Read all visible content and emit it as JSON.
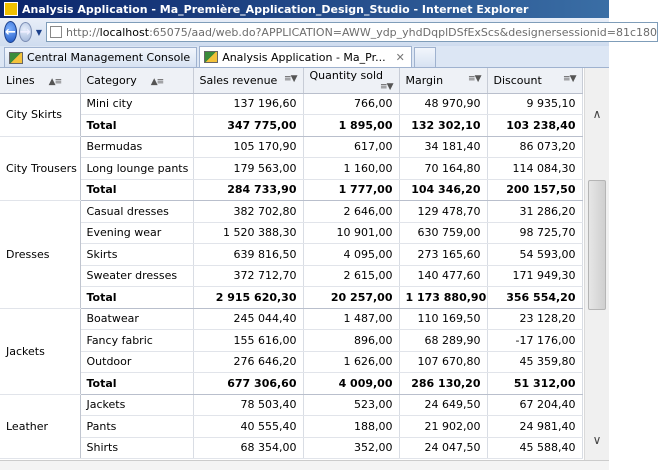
{
  "window": {
    "title": "Analysis Application - Ma_Première_Application_Design_Studio - Internet Explorer"
  },
  "address": {
    "prefix": "http://",
    "host": "localhost",
    "rest": ":65075/aad/web.do?APPLICATION=AWW_ydp_yhdDqplDSfExScs&designersessionid=81c180"
  },
  "tabs": [
    {
      "label": "Central Management Console"
    },
    {
      "label": "Analysis Application - Ma_Pr..."
    }
  ],
  "table": {
    "headers": [
      "Lines",
      "Category",
      "Sales revenue",
      "Quantity sold",
      "Margin",
      "Discount"
    ],
    "groups": [
      {
        "line": "City Skirts",
        "rows": [
          {
            "category": "Mini city",
            "sales": "137 196,60",
            "qty": "766,00",
            "margin": "48 970,90",
            "discount": "9 935,10"
          },
          {
            "category": "Total",
            "sales": "347 775,00",
            "qty": "1 895,00",
            "margin": "132 302,10",
            "discount": "103 238,40",
            "total": true
          }
        ]
      },
      {
        "line": "City Trousers",
        "rows": [
          {
            "category": "Bermudas",
            "sales": "105 170,90",
            "qty": "617,00",
            "margin": "34 181,40",
            "discount": "86 073,20"
          },
          {
            "category": "Long lounge pants",
            "sales": "179 563,00",
            "qty": "1 160,00",
            "margin": "70 164,80",
            "discount": "114 084,30"
          },
          {
            "category": "Total",
            "sales": "284 733,90",
            "qty": "1 777,00",
            "margin": "104 346,20",
            "discount": "200 157,50",
            "total": true
          }
        ]
      },
      {
        "line": "Dresses",
        "rows": [
          {
            "category": "Casual dresses",
            "sales": "382 702,80",
            "qty": "2 646,00",
            "margin": "129 478,70",
            "discount": "31 286,20"
          },
          {
            "category": "Evening wear",
            "sales": "1 520 388,30",
            "qty": "10 901,00",
            "margin": "630 759,00",
            "discount": "98 725,70"
          },
          {
            "category": "Skirts",
            "sales": "639 816,50",
            "qty": "4 095,00",
            "margin": "273 165,60",
            "discount": "54 593,00"
          },
          {
            "category": "Sweater dresses",
            "sales": "372 712,70",
            "qty": "2 615,00",
            "margin": "140 477,60",
            "discount": "171 949,30"
          },
          {
            "category": "Total",
            "sales": "2 915 620,30",
            "qty": "20 257,00",
            "margin": "1 173 880,90",
            "discount": "356 554,20",
            "total": true
          }
        ]
      },
      {
        "line": "Jackets",
        "rows": [
          {
            "category": "Boatwear",
            "sales": "245 044,40",
            "qty": "1 487,00",
            "margin": "110 169,50",
            "discount": "23 128,20"
          },
          {
            "category": "Fancy fabric",
            "sales": "155 616,00",
            "qty": "896,00",
            "margin": "68 289,90",
            "discount": "-17 176,00"
          },
          {
            "category": "Outdoor",
            "sales": "276 646,20",
            "qty": "1 626,00",
            "margin": "107 670,80",
            "discount": "45 359,80"
          },
          {
            "category": "Total",
            "sales": "677 306,60",
            "qty": "4 009,00",
            "margin": "286 130,20",
            "discount": "51 312,00",
            "total": true
          }
        ]
      },
      {
        "line": "Leather",
        "rows": [
          {
            "category": "Jackets",
            "sales": "78 503,40",
            "qty": "523,00",
            "margin": "24 649,50",
            "discount": "67 204,40"
          },
          {
            "category": "Pants",
            "sales": "40 555,40",
            "qty": "188,00",
            "margin": "21 902,00",
            "discount": "24 981,40"
          },
          {
            "category": "Shirts",
            "sales": "68 354,00",
            "qty": "352,00",
            "margin": "24 047,50",
            "discount": "45 588,40"
          }
        ]
      }
    ]
  }
}
